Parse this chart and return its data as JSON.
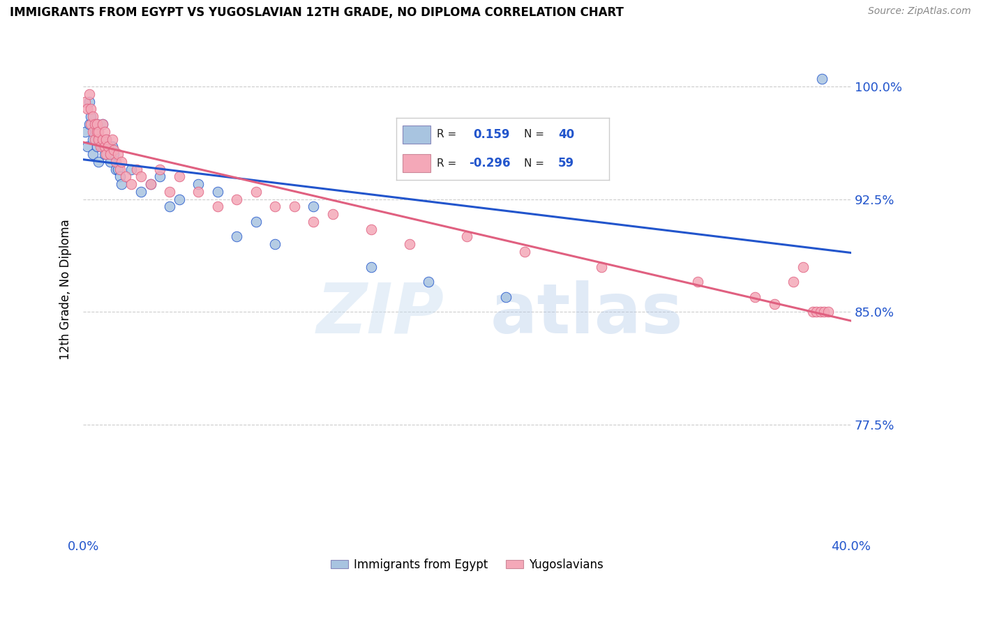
{
  "title": "IMMIGRANTS FROM EGYPT VS YUGOSLAVIAN 12TH GRADE, NO DIPLOMA CORRELATION CHART",
  "source": "Source: ZipAtlas.com",
  "ylabel": "12th Grade, No Diploma",
  "ytick_labels": [
    "100.0%",
    "92.5%",
    "85.0%",
    "77.5%"
  ],
  "ytick_values": [
    1.0,
    0.925,
    0.85,
    0.775
  ],
  "xlim": [
    0.0,
    0.4
  ],
  "ylim": [
    0.7,
    1.03
  ],
  "color_egypt": "#a8c4e0",
  "color_yugo": "#f4a8b8",
  "trendline_egypt_color": "#2255cc",
  "trendline_yugo_color": "#e06080",
  "egypt_x": [
    0.001,
    0.002,
    0.003,
    0.003,
    0.004,
    0.005,
    0.005,
    0.006,
    0.007,
    0.007,
    0.008,
    0.009,
    0.01,
    0.01,
    0.011,
    0.012,
    0.013,
    0.014,
    0.015,
    0.016,
    0.017,
    0.018,
    0.019,
    0.02,
    0.025,
    0.03,
    0.035,
    0.04,
    0.045,
    0.05,
    0.06,
    0.07,
    0.08,
    0.09,
    0.1,
    0.12,
    0.15,
    0.18,
    0.22,
    0.385
  ],
  "egypt_y": [
    0.97,
    0.96,
    0.975,
    0.99,
    0.98,
    0.965,
    0.955,
    0.97,
    0.96,
    0.975,
    0.95,
    0.965,
    0.96,
    0.975,
    0.955,
    0.965,
    0.96,
    0.95,
    0.96,
    0.955,
    0.945,
    0.945,
    0.94,
    0.935,
    0.945,
    0.93,
    0.935,
    0.94,
    0.92,
    0.925,
    0.935,
    0.93,
    0.9,
    0.91,
    0.895,
    0.92,
    0.88,
    0.87,
    0.86,
    1.005
  ],
  "yugo_x": [
    0.001,
    0.002,
    0.003,
    0.004,
    0.004,
    0.005,
    0.005,
    0.006,
    0.006,
    0.007,
    0.007,
    0.008,
    0.008,
    0.009,
    0.01,
    0.01,
    0.011,
    0.011,
    0.012,
    0.012,
    0.013,
    0.014,
    0.015,
    0.016,
    0.017,
    0.018,
    0.019,
    0.02,
    0.022,
    0.025,
    0.028,
    0.03,
    0.035,
    0.04,
    0.045,
    0.05,
    0.06,
    0.07,
    0.08,
    0.09,
    0.1,
    0.11,
    0.12,
    0.13,
    0.15,
    0.17,
    0.2,
    0.23,
    0.27,
    0.32,
    0.35,
    0.36,
    0.37,
    0.375,
    0.38,
    0.382,
    0.384,
    0.386,
    0.388
  ],
  "yugo_y": [
    0.99,
    0.985,
    0.995,
    0.985,
    0.975,
    0.98,
    0.97,
    0.975,
    0.965,
    0.97,
    0.975,
    0.965,
    0.97,
    0.96,
    0.975,
    0.965,
    0.97,
    0.96,
    0.965,
    0.955,
    0.96,
    0.955,
    0.965,
    0.958,
    0.95,
    0.955,
    0.945,
    0.95,
    0.94,
    0.935,
    0.945,
    0.94,
    0.935,
    0.945,
    0.93,
    0.94,
    0.93,
    0.92,
    0.925,
    0.93,
    0.92,
    0.92,
    0.91,
    0.915,
    0.905,
    0.895,
    0.9,
    0.89,
    0.88,
    0.87,
    0.86,
    0.855,
    0.87,
    0.88,
    0.85,
    0.85,
    0.85,
    0.85,
    0.85
  ]
}
